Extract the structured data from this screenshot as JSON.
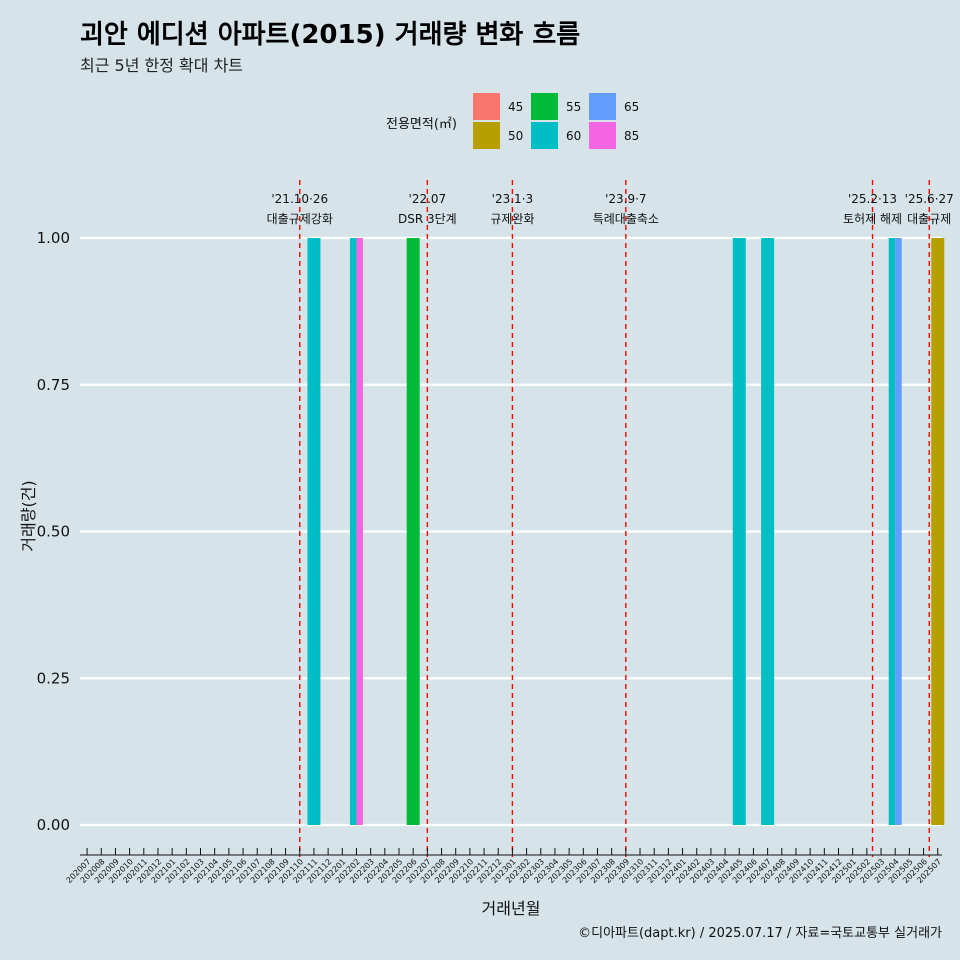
{
  "title": "괴안 에디션 아파트(2015) 거래량 변화 흐름",
  "subtitle": "최근 5년 한정 확대 차트",
  "caption": "©디아파트(dapt.kr) / 2025.07.17 / 자료=국토교통부 실거래가",
  "chart_data": {
    "type": "bar",
    "title": "괴안 에디션 아파트(2015) 거래량 변화 흐름",
    "subtitle": "최근 5년 한정 확대 차트",
    "xlabel": "거래년월",
    "ylabel": "거래량(건)",
    "ylim": [
      0,
      1
    ],
    "yticks": [
      "0.00",
      "0.25",
      "0.50",
      "0.75",
      "1.00"
    ],
    "grid": true,
    "legend": {
      "title": "전용면적(㎡)",
      "placement": "top",
      "entries": [
        {
          "label": "45",
          "color": "#F8766D"
        },
        {
          "label": "50",
          "color": "#B79F00"
        },
        {
          "label": "55",
          "color": "#00BA38"
        },
        {
          "label": "60",
          "color": "#00BFC4"
        },
        {
          "label": "65",
          "color": "#619CFF"
        },
        {
          "label": "85",
          "color": "#F564E3"
        }
      ]
    },
    "categories": [
      "202007",
      "202008",
      "202009",
      "202010",
      "202011",
      "202012",
      "202101",
      "202102",
      "202103",
      "202104",
      "202105",
      "202106",
      "202107",
      "202108",
      "202109",
      "202110",
      "202111",
      "202112",
      "202201",
      "202202",
      "202203",
      "202204",
      "202205",
      "202206",
      "202207",
      "202208",
      "202209",
      "202210",
      "202211",
      "202212",
      "202301",
      "202302",
      "202303",
      "202304",
      "202305",
      "202306",
      "202307",
      "202308",
      "202309",
      "202310",
      "202311",
      "202312",
      "202401",
      "202402",
      "202403",
      "202404",
      "202405",
      "202406",
      "202407",
      "202408",
      "202409",
      "202410",
      "202411",
      "202412",
      "202501",
      "202502",
      "202503",
      "202504",
      "202505",
      "202506",
      "202507"
    ],
    "bars": [
      {
        "month": "202111",
        "area": "60",
        "value": 1
      },
      {
        "month": "202202",
        "area": "60",
        "value": 1
      },
      {
        "month": "202202",
        "area": "85",
        "value": 1
      },
      {
        "month": "202206",
        "area": "55",
        "value": 1
      },
      {
        "month": "202405",
        "area": "60",
        "value": 1
      },
      {
        "month": "202407",
        "area": "60",
        "value": 1
      },
      {
        "month": "202504",
        "area": "60",
        "value": 1
      },
      {
        "month": "202504",
        "area": "65",
        "value": 1
      },
      {
        "month": "202507",
        "area": "50",
        "value": 1
      }
    ],
    "events": [
      {
        "date": "'21.10·26",
        "label": "대출규제강화",
        "month": "202110",
        "offset": 0
      },
      {
        "date": "'22.07",
        "label": "DSR 3단계",
        "month": "202207",
        "offset": 0
      },
      {
        "date": "'23.1·3",
        "label": "규제완화",
        "month": "202301",
        "offset": 0
      },
      {
        "date": "'23.9·7",
        "label": "특례대출축소",
        "month": "202309",
        "offset": 0
      },
      {
        "date": "'25.2·13",
        "label": "토허제 해제",
        "month": "202502",
        "offset": 0.4
      },
      {
        "date": "'25.6·27",
        "label": "대출규제",
        "month": "202506",
        "offset": 0.4
      }
    ]
  }
}
